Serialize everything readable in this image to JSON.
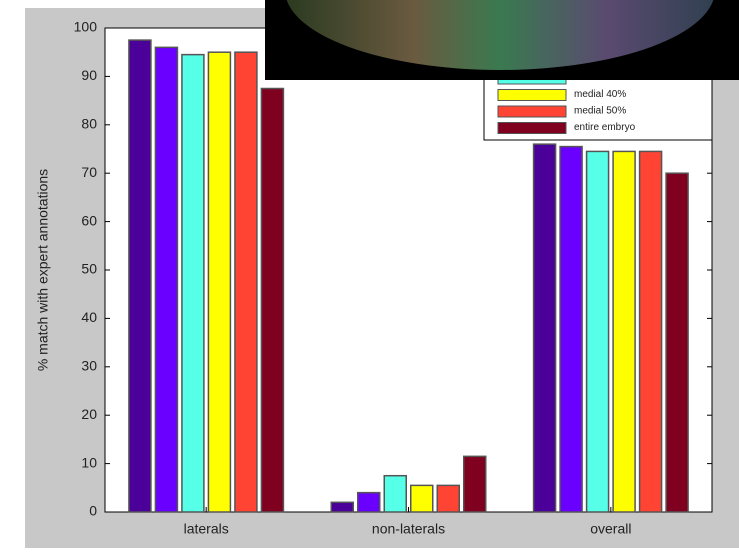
{
  "chart_data": {
    "type": "bar",
    "ylabel": "% match with expert annotations",
    "categories": [
      "laterals",
      "non-laterals",
      "overall"
    ],
    "series": [
      {
        "color": "#4b0099",
        "values": [
          97.5,
          2,
          76
        ]
      },
      {
        "color": "#6a00ff",
        "values": [
          96,
          4,
          75.5
        ]
      },
      {
        "color": "#55ffe8",
        "values": [
          94.5,
          7.5,
          74.5
        ]
      },
      {
        "name": "medial 40%",
        "color": "#ffff00",
        "values": [
          95,
          5.5,
          74.5
        ]
      },
      {
        "name": "medial 50%",
        "color": "#ff4433",
        "values": [
          95,
          5.5,
          74.5
        ]
      },
      {
        "name": "entire embryo",
        "color": "#800020",
        "values": [
          87.5,
          11.5,
          70
        ]
      }
    ],
    "ylim": [
      0,
      100
    ],
    "yticks": [
      0,
      10,
      20,
      30,
      40,
      50,
      60,
      70,
      80,
      90,
      100
    ],
    "legend": "upper right"
  }
}
